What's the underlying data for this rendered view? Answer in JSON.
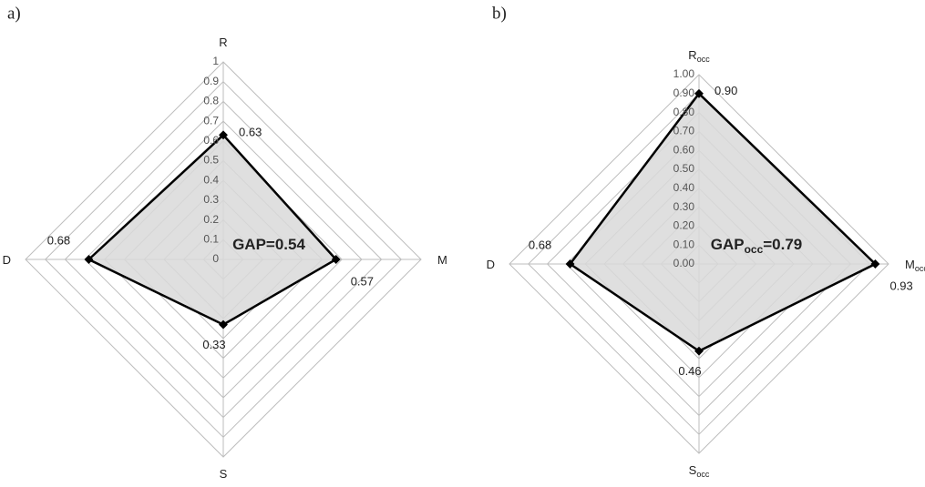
{
  "chart_data": [
    {
      "type": "radar",
      "panel": "a)",
      "categories": [
        "R",
        "M",
        "S",
        "D"
      ],
      "category_subscripts": [
        null,
        null,
        null,
        null
      ],
      "values": [
        0.63,
        0.57,
        0.33,
        0.68
      ],
      "ylim": [
        0,
        1
      ],
      "yticks": [
        0,
        0.1,
        0.2,
        0.3,
        0.4,
        0.5,
        0.6,
        0.7,
        0.8,
        0.9,
        1
      ],
      "annotation": {
        "text": "GAP=0.54"
      },
      "color": "#000000",
      "fill": "#d9d9d9"
    },
    {
      "type": "radar",
      "panel": "b)",
      "categories": [
        "R",
        "M",
        "S",
        "D"
      ],
      "category_subscripts": [
        "occ",
        "occ",
        "occ",
        null
      ],
      "values": [
        0.9,
        0.93,
        0.46,
        0.68
      ],
      "value_labels": [
        "0.90",
        "0.93",
        "0.46",
        "0.68"
      ],
      "ylim": [
        0,
        1
      ],
      "yticks": [
        {
          "value": 0,
          "label": "0.00"
        },
        {
          "value": 0.1,
          "label": "0.10"
        },
        {
          "value": 0.2,
          "label": "0.20"
        },
        {
          "value": 0.3,
          "label": "0.30"
        },
        {
          "value": 0.4,
          "label": "0.40"
        },
        {
          "value": 0.5,
          "label": "0.50"
        },
        {
          "value": 0.6,
          "label": "0.60"
        },
        {
          "value": 0.7,
          "label": "0.70"
        },
        {
          "value": 0.8,
          "label": "0.80"
        },
        {
          "value": 0.9,
          "label": "0.90"
        },
        {
          "value": 1,
          "label": "1.00"
        }
      ],
      "annotation": {
        "text": "GAP",
        "subscript": "occ",
        "suffix": "=0.79"
      },
      "color": "#000000",
      "fill": "#d9d9d9"
    }
  ]
}
